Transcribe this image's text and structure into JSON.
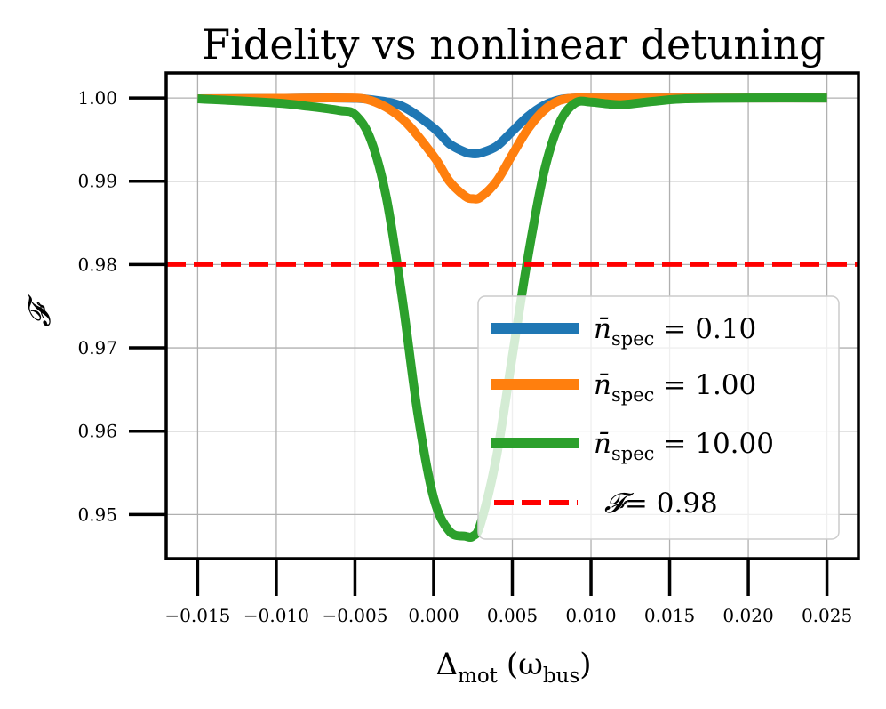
{
  "chart_data": {
    "type": "line",
    "title": "Fidelity vs nonlinear detuning",
    "xlabel": "Δ",
    "xlabel_sub": "mot",
    "xlabel_unit_open": "(ω",
    "xlabel_unit_sub": "bus",
    "xlabel_unit_close": ")",
    "ylabel": "𝓕",
    "xlim": [
      -0.017,
      0.027
    ],
    "ylim": [
      0.9447,
      1.003
    ],
    "x_ticks": [
      -0.015,
      -0.01,
      -0.005,
      0.0,
      0.005,
      0.01,
      0.015,
      0.02,
      0.025
    ],
    "x_tick_labels": [
      "−0.015",
      "−0.010",
      "−0.005",
      "0.000",
      "0.005",
      "0.010",
      "0.015",
      "0.020",
      "0.025"
    ],
    "y_ticks": [
      0.95,
      0.96,
      0.97,
      0.98,
      0.99,
      1.0
    ],
    "y_tick_labels": [
      "0.95",
      "0.96",
      "0.97",
      "0.98",
      "0.99",
      "1.00"
    ],
    "grid": true,
    "legend_position": "lower-right",
    "series": [
      {
        "name": "n̄spec = 0.10",
        "label_main": "n̄",
        "label_sub": "spec",
        "label_value": "= 0.10",
        "color": "#1f77b4",
        "x": [
          -0.015,
          -0.01,
          -0.006,
          -0.004,
          -0.002,
          0.0,
          0.001,
          0.002,
          0.0025,
          0.003,
          0.004,
          0.005,
          0.006,
          0.007,
          0.008,
          0.009,
          0.01,
          0.015,
          0.02,
          0.025
        ],
        "y": [
          0.9999,
          0.99995,
          1.0,
          0.9998,
          0.999,
          0.9964,
          0.9945,
          0.9935,
          0.9933,
          0.9934,
          0.9942,
          0.996,
          0.9978,
          0.9991,
          0.9998,
          1.0,
          1.0,
          1.0,
          1.0,
          1.0
        ]
      },
      {
        "name": "n̄spec = 1.00",
        "label_main": "n̄",
        "label_sub": "spec",
        "label_value": "= 1.00",
        "color": "#ff7f0e",
        "x": [
          -0.015,
          -0.01,
          -0.006,
          -0.004,
          -0.002,
          0.0,
          0.001,
          0.002,
          0.0025,
          0.003,
          0.004,
          0.005,
          0.006,
          0.007,
          0.008,
          0.009,
          0.01,
          0.015,
          0.02,
          0.025
        ],
        "y": [
          0.9999,
          0.99995,
          1.0,
          0.9997,
          0.9975,
          0.993,
          0.99,
          0.9882,
          0.9879,
          0.9881,
          0.99,
          0.9932,
          0.9963,
          0.9985,
          0.9997,
          1.0,
          1.0,
          1.0,
          1.0,
          1.0
        ]
      },
      {
        "name": "n̄spec = 10.00",
        "label_main": "n̄",
        "label_sub": "spec",
        "label_value": "= 10.00",
        "color": "#2ca02c",
        "x": [
          -0.015,
          -0.01,
          -0.008,
          -0.006,
          -0.005,
          -0.004,
          -0.003,
          -0.002,
          -0.001,
          0.0,
          0.001,
          0.002,
          0.0025,
          0.003,
          0.004,
          0.005,
          0.006,
          0.007,
          0.008,
          0.009,
          0.01,
          0.011,
          0.012,
          0.014,
          0.016,
          0.02,
          0.025
        ],
        "y": [
          0.9999,
          0.9994,
          0.999,
          0.9985,
          0.998,
          0.995,
          0.988,
          0.976,
          0.962,
          0.952,
          0.948,
          0.9474,
          0.9474,
          0.949,
          0.957,
          0.969,
          0.981,
          0.991,
          0.997,
          0.9994,
          0.9995,
          0.9993,
          0.9992,
          0.9996,
          0.9999,
          1.0,
          1.0
        ]
      }
    ],
    "reference_line": {
      "name": "𝓕= 0.98",
      "label_main": "𝓕",
      "label_value": "= 0.98",
      "y": 0.98,
      "color": "#ff0000",
      "style": "dashed"
    }
  }
}
